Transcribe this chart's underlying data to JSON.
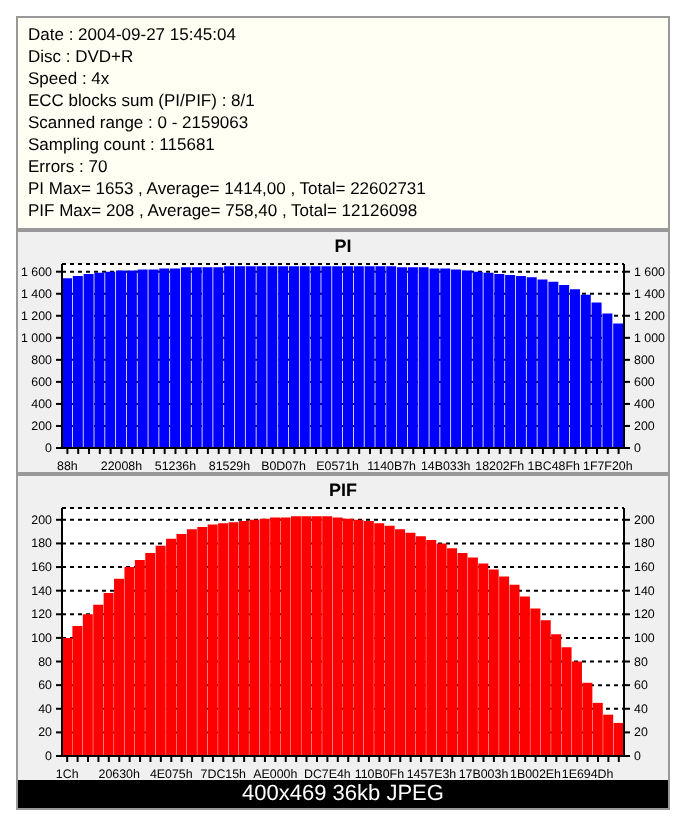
{
  "chart_data": [
    {
      "type": "other",
      "annotations": [
        "Date : 2004-09-27 15:45:04",
        "Disc : DVD+R",
        "Speed : 4x",
        "ECC blocks sum (PI/PIF) : 8/1",
        "Scanned range : 0 - 2159063",
        "Sampling count : 115681",
        "Errors : 70",
        "PI Max= 1653 , Average= 1414,00 , Total= 22602731",
        "PIF Max= 208 , Average= 758,40 , Total= 12126098"
      ]
    },
    {
      "type": "bar",
      "title": "PI",
      "color": "#0000ff",
      "grid": "y",
      "categories": [
        "88h",
        null,
        null,
        null,
        null,
        "22008h",
        null,
        null,
        null,
        null,
        "51236h",
        null,
        null,
        null,
        null,
        "81529h",
        null,
        null,
        null,
        null,
        "B0D07h",
        null,
        null,
        null,
        null,
        "E0571h",
        null,
        null,
        null,
        null,
        "1140B7h",
        null,
        null,
        null,
        null,
        "14B033h",
        null,
        null,
        null,
        null,
        "18202Fh",
        null,
        null,
        null,
        null,
        "1BC48Fh",
        null,
        null,
        null,
        null,
        "1F7F20h",
        null
      ],
      "values": [
        1540,
        1560,
        1580,
        1590,
        1600,
        1610,
        1610,
        1620,
        1620,
        1630,
        1630,
        1640,
        1640,
        1640,
        1640,
        1650,
        1650,
        1650,
        1650,
        1650,
        1650,
        1650,
        1650,
        1650,
        1650,
        1650,
        1650,
        1650,
        1650,
        1650,
        1650,
        1640,
        1640,
        1640,
        1630,
        1630,
        1620,
        1610,
        1600,
        1590,
        1580,
        1570,
        1560,
        1550,
        1530,
        1510,
        1480,
        1440,
        1390,
        1320,
        1220,
        1130
      ],
      "ylim": [
        0,
        1670
      ],
      "yticks": [
        0,
        200,
        400,
        600,
        800,
        {
          "value": 1000,
          "label": "1 000"
        },
        {
          "value": 1200,
          "label": "1 200"
        },
        {
          "value": 1400,
          "label": "1 400"
        },
        {
          "value": 1600,
          "label": "1 600"
        }
      ],
      "y2lim": [
        0,
        1670
      ],
      "y2ticks": [
        0,
        200,
        400,
        600,
        800,
        {
          "value": 1000,
          "label": "1 000"
        },
        {
          "value": 1200,
          "label": "1 200"
        },
        {
          "value": 1400,
          "label": "1 400"
        },
        {
          "value": 1600,
          "label": "1 600"
        }
      ]
    },
    {
      "type": "bar",
      "title": "PIF",
      "color": "#ff0000",
      "grid": "y",
      "categories": [
        "1Ch",
        null,
        null,
        null,
        null,
        "20630h",
        null,
        null,
        null,
        null,
        "4E075h",
        null,
        null,
        null,
        null,
        "7DC15h",
        null,
        null,
        null,
        null,
        "AE000h",
        null,
        null,
        null,
        null,
        "DC7E4h",
        null,
        null,
        null,
        null,
        "110B0Fh",
        null,
        null,
        null,
        null,
        "1457E3h",
        null,
        null,
        null,
        null,
        "17B003h",
        null,
        null,
        null,
        null,
        "1B002Eh",
        null,
        null,
        null,
        null,
        "1E694Dh",
        null,
        null,
        null
      ],
      "values": [
        100,
        110,
        120,
        128,
        138,
        150,
        160,
        166,
        172,
        178,
        184,
        188,
        192,
        194,
        196,
        197,
        198,
        199,
        200,
        201,
        202,
        202,
        203,
        203,
        203,
        203,
        202,
        201,
        200,
        199,
        197,
        195,
        192,
        189,
        186,
        183,
        180,
        176,
        172,
        168,
        163,
        158,
        152,
        145,
        135,
        125,
        115,
        103,
        92,
        80,
        62,
        45,
        35,
        28
      ],
      "ylim": [
        0,
        210
      ],
      "yticks": [
        0,
        20,
        40,
        60,
        80,
        100,
        120,
        140,
        160,
        180,
        200
      ],
      "y2lim": [
        0,
        210
      ],
      "y2ticks": [
        0,
        20,
        40,
        60,
        80,
        100,
        120,
        140,
        160,
        180,
        200
      ],
      "annotations": [
        "400x469 36kb JPEG"
      ]
    }
  ]
}
